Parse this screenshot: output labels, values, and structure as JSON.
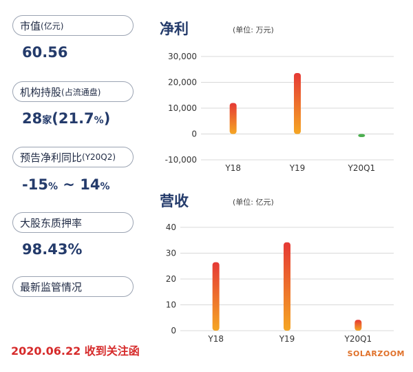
{
  "left_panel": {
    "market_cap": {
      "label": "市值",
      "label_small": "(亿元)",
      "value": "60.56"
    },
    "institution": {
      "label": "机构持股",
      "label_small": "(占流通盘)",
      "value_num": "28",
      "value_unit": "家",
      "value_paren_open": "(",
      "value_pct": "21.7",
      "value_pct_sign": "%",
      "value_paren_close": ")"
    },
    "forecast": {
      "label": "预告净利同比",
      "label_small": "(Y20Q2)",
      "value_a": "-15",
      "value_a_pct": "%",
      "value_sep": " ~ ",
      "value_b": "14",
      "value_b_pct": "%"
    },
    "pledge": {
      "label": "大股东质押率",
      "value": "98.43%"
    },
    "supervision": {
      "label": "最新监管情况"
    }
  },
  "date_text": "2020.06.22 收到关注函",
  "watermark": "SOLARZOOM",
  "colors": {
    "bar_top": "#e53935",
    "bar_bottom": "#f5a623",
    "negative_bar": "#4caf50",
    "title": "#243b6b",
    "date": "#d62b2b"
  },
  "chart_data": [
    {
      "type": "bar",
      "title": "净利",
      "unit_label": "(单位: 万元)",
      "categories": [
        "Y18",
        "Y19",
        "Y20Q1"
      ],
      "values": [
        12000,
        23600,
        -1200
      ],
      "ylim": [
        -10000,
        30000
      ],
      "yticks": [
        30000,
        20000,
        10000,
        0,
        -10000
      ],
      "ytick_labels": [
        "30,000",
        "20,000",
        "10,000",
        "0",
        "-10,000"
      ],
      "grid": true
    },
    {
      "type": "bar",
      "title": "营收",
      "unit_label": "(单位: 亿元)",
      "categories": [
        "Y18",
        "Y19",
        "Y20Q1"
      ],
      "values": [
        26.5,
        34.2,
        4.2
      ],
      "ylim": [
        0,
        40
      ],
      "yticks": [
        40,
        30,
        20,
        10,
        0
      ],
      "ytick_labels": [
        "40",
        "30",
        "20",
        "10",
        "0"
      ],
      "grid": true
    }
  ]
}
